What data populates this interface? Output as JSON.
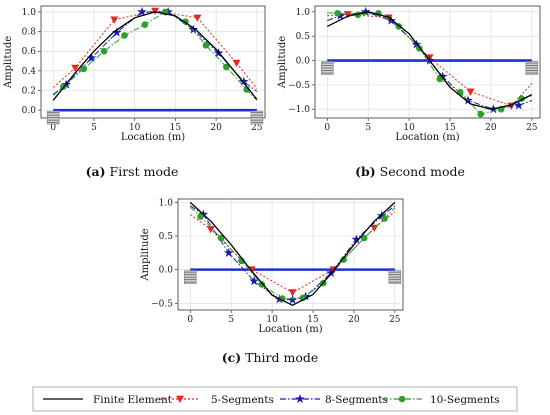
{
  "legend": [
    {
      "key": "fe",
      "label": "Finite Element",
      "color": "#000000",
      "dash": "",
      "marker": "none"
    },
    {
      "key": "s5",
      "label": "5-Segments",
      "color": "#e8281e",
      "dash": "2,2",
      "marker": "tri-down"
    },
    {
      "key": "s8",
      "label": "8-Segments",
      "color": "#1a1ab4",
      "dash": "6,2,1.5,2",
      "marker": "star"
    },
    {
      "key": "s10",
      "label": "10-Segments",
      "color": "#2e9e2e",
      "dash": "6,2,1.5,2",
      "marker": "circle"
    }
  ],
  "chart_data": [
    {
      "type": "line",
      "caption_tag": "(a)",
      "caption_text": " First mode",
      "xlabel": "Location (m)",
      "ylabel": "Amplitude",
      "xlim": [
        -1.5,
        26.0
      ],
      "ylim": [
        -0.08,
        1.06
      ],
      "xticks": [
        "0",
        "5",
        "10",
        "15",
        "20",
        "25"
      ],
      "yticks": [
        "0.0",
        "0.2",
        "0.4",
        "0.6",
        "0.8",
        "1.0"
      ],
      "grid": true,
      "beam": {
        "x": [
          0,
          25
        ],
        "y": 0
      },
      "series": [
        {
          "key": "fe",
          "x": [
            0,
            2.5,
            5,
            7.5,
            10,
            12.5,
            15,
            17.5,
            20,
            22.5,
            25
          ],
          "y": [
            0.1,
            0.36,
            0.6,
            0.8,
            0.94,
            1.0,
            0.96,
            0.82,
            0.62,
            0.37,
            0.11
          ]
        },
        {
          "key": "s5",
          "x": [
            0,
            2.7,
            7.5,
            12.5,
            17.7,
            22.5,
            25
          ],
          "y": [
            0.23,
            0.43,
            0.92,
            1.01,
            0.94,
            0.48,
            0.22
          ]
        },
        {
          "key": "s8",
          "x": [
            0,
            1.6,
            4.7,
            7.8,
            10.9,
            14.1,
            17.2,
            20.3,
            23.4,
            25
          ],
          "y": [
            0.16,
            0.26,
            0.53,
            0.79,
            1.0,
            1.0,
            0.82,
            0.58,
            0.29,
            0.19
          ]
        },
        {
          "key": "s10",
          "x": [
            0,
            1.25,
            3.75,
            6.25,
            8.75,
            11.25,
            13.75,
            16.25,
            18.75,
            21.25,
            23.75,
            25
          ],
          "y": [
            0.15,
            0.24,
            0.42,
            0.6,
            0.76,
            0.87,
            1.0,
            0.9,
            0.66,
            0.44,
            0.21,
            0.1
          ]
        }
      ]
    },
    {
      "type": "line",
      "caption_tag": "(b)",
      "caption_text": " Second mode",
      "xlabel": "Location (m)",
      "ylabel": "Amplitude",
      "xlim": [
        -1.5,
        26.0
      ],
      "ylim": [
        -1.18,
        1.12
      ],
      "xticks": [
        "0",
        "5",
        "10",
        "15",
        "20",
        "25"
      ],
      "yticks": [
        "−1.0",
        "−0.5",
        "0.0",
        "0.5",
        "1.0"
      ],
      "grid": true,
      "beam": {
        "x": [
          0,
          25
        ],
        "y": 0
      },
      "series": [
        {
          "key": "fe",
          "x": [
            0,
            2.5,
            5,
            7.5,
            10,
            12.5,
            15,
            17.5,
            20,
            22.5,
            25
          ],
          "y": [
            0.7,
            0.91,
            1.0,
            0.89,
            0.55,
            0.0,
            -0.55,
            -0.89,
            -1.0,
            -0.91,
            -0.7
          ]
        },
        {
          "key": "s5",
          "x": [
            0,
            2.5,
            7.5,
            12.5,
            17.5,
            22.5,
            25
          ],
          "y": [
            0.92,
            0.95,
            0.88,
            0.06,
            -0.64,
            -0.93,
            -0.47
          ]
        },
        {
          "key": "s8",
          "x": [
            0,
            1.6,
            4.7,
            7.8,
            10.9,
            12.5,
            14.1,
            17.2,
            20.3,
            23.4,
            25
          ],
          "y": [
            0.82,
            0.92,
            1.0,
            0.82,
            0.33,
            0.0,
            -0.33,
            -0.82,
            -1.0,
            -0.92,
            -0.82
          ]
        },
        {
          "key": "s10",
          "x": [
            0,
            1.25,
            3.75,
            6.25,
            8.75,
            11.25,
            13.75,
            16.25,
            18.75,
            21.25,
            23.75,
            25
          ],
          "y": [
            0.98,
            0.97,
            0.94,
            0.97,
            0.7,
            0.25,
            -0.38,
            -0.65,
            -1.1,
            -1.0,
            -0.78,
            -0.72
          ]
        }
      ]
    },
    {
      "type": "line",
      "caption_tag": "(c)",
      "caption_text": " Third mode",
      "xlabel": "Location (m)",
      "ylabel": "Amplitude",
      "xlim": [
        -1.5,
        26.0
      ],
      "ylim": [
        -0.6,
        1.05
      ],
      "xticks": [
        "0",
        "5",
        "10",
        "15",
        "20",
        "25"
      ],
      "yticks": [
        "−0.5",
        "0.0",
        "0.5",
        "1.0"
      ],
      "grid": true,
      "beam": {
        "x": [
          0,
          25
        ],
        "y": 0
      },
      "series": [
        {
          "key": "fe",
          "x": [
            0,
            2.5,
            5,
            7.5,
            10,
            12.5,
            15,
            17.5,
            20,
            22.5,
            25
          ],
          "y": [
            1.0,
            0.72,
            0.37,
            -0.02,
            -0.38,
            -0.53,
            -0.37,
            -0.02,
            0.37,
            0.72,
            1.0
          ]
        },
        {
          "key": "s5",
          "x": [
            0,
            2.5,
            7.5,
            12.5,
            17.5,
            22.5,
            25
          ],
          "y": [
            0.82,
            0.6,
            0.0,
            -0.34,
            0.0,
            0.62,
            0.86
          ]
        },
        {
          "key": "s8",
          "x": [
            0,
            1.6,
            4.7,
            7.8,
            10.9,
            12.5,
            14.1,
            17.2,
            20.3,
            23.4,
            25
          ],
          "y": [
            0.95,
            0.82,
            0.25,
            -0.17,
            -0.44,
            -0.45,
            -0.4,
            -0.05,
            0.45,
            0.8,
            0.95
          ]
        },
        {
          "key": "s10",
          "x": [
            0,
            1.25,
            3.75,
            6.25,
            8.75,
            11.25,
            13.75,
            16.25,
            18.75,
            21.25,
            23.75,
            25
          ],
          "y": [
            0.93,
            0.79,
            0.47,
            0.13,
            -0.22,
            -0.43,
            -0.42,
            -0.2,
            0.15,
            0.47,
            0.76,
            0.92
          ]
        }
      ]
    }
  ]
}
